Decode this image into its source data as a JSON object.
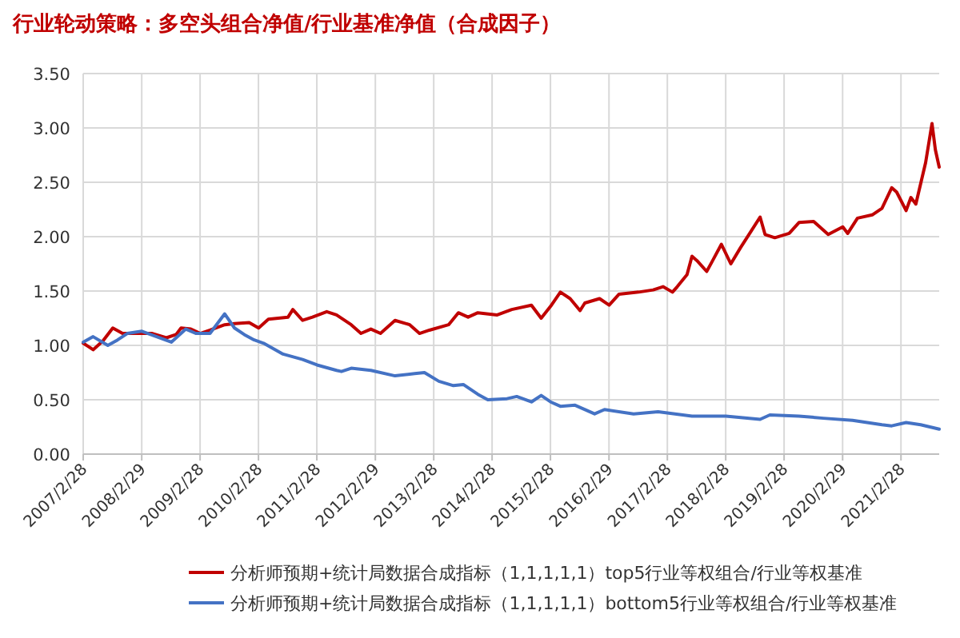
{
  "chart_data": {
    "type": "line",
    "title": "行业轮动策略：多空头组合净值/行业基准净值（合成因子）",
    "xlim": [
      "2007-02-28",
      "2021-10-25"
    ],
    "xticks": [
      {
        "value": "2007-02-28",
        "label": "2007/2/28"
      },
      {
        "value": "2008-02-29",
        "label": "2008/2/29"
      },
      {
        "value": "2009-02-28",
        "label": "2009/2/28"
      },
      {
        "value": "2010-02-28",
        "label": "2010/2/28"
      },
      {
        "value": "2011-02-28",
        "label": "2011/2/28"
      },
      {
        "value": "2012-02-29",
        "label": "2012/2/29"
      },
      {
        "value": "2013-02-28",
        "label": "2013/2/28"
      },
      {
        "value": "2014-02-28",
        "label": "2014/2/28"
      },
      {
        "value": "2015-02-28",
        "label": "2015/2/28"
      },
      {
        "value": "2016-02-29",
        "label": "2016/2/29"
      },
      {
        "value": "2017-02-28",
        "label": "2017/2/28"
      },
      {
        "value": "2018-02-28",
        "label": "2018/2/28"
      },
      {
        "value": "2019-02-28",
        "label": "2019/2/28"
      },
      {
        "value": "2020-02-29",
        "label": "2020/2/29"
      },
      {
        "value": "2021-02-28",
        "label": "2021/2/28"
      }
    ],
    "ylim": [
      0,
      3.5
    ],
    "yticks": [
      {
        "value": 0,
        "label": "0.00"
      },
      {
        "value": 0.5,
        "label": "0.50"
      },
      {
        "value": 1,
        "label": "1.00"
      },
      {
        "value": 1.5,
        "label": "1.50"
      },
      {
        "value": 2,
        "label": "2.00"
      },
      {
        "value": 2.5,
        "label": "2.50"
      },
      {
        "value": 3,
        "label": "3.00"
      },
      {
        "value": 3.5,
        "label": "3.50"
      }
    ],
    "grid": true,
    "legend": "bottom",
    "line_style": "solid",
    "series": [
      {
        "name": "分析师预期+统计局数据合成指标（1,1,1,1,1）top5行业等权组合/行业等权基准",
        "color": "#c00000",
        "x": [
          "2007-02-28",
          "2007-04",
          "2007-05",
          "2007-07",
          "2007-09",
          "2007-11",
          "2008-02",
          "2008-05",
          "2008-08",
          "2008-10",
          "2008-11",
          "2009-01",
          "2009-03",
          "2009-05",
          "2009-08",
          "2009-10",
          "2010-01",
          "2010-03",
          "2010-05",
          "2010-09",
          "2010-10",
          "2010-12",
          "2011-02",
          "2011-05",
          "2011-07",
          "2011-10",
          "2011-12",
          "2012-02",
          "2012-04",
          "2012-07",
          "2012-10",
          "2012-12",
          "2013-02",
          "2013-06",
          "2013-08",
          "2013-10",
          "2013-12",
          "2014-04",
          "2014-07",
          "2014-11",
          "2015-01",
          "2015-03",
          "2015-05",
          "2015-07",
          "2015-09",
          "2015-10",
          "2016-01",
          "2016-03",
          "2016-05",
          "2016-09",
          "2016-12",
          "2017-02",
          "2017-04",
          "2017-05",
          "2017-07",
          "2017-08",
          "2017-09",
          "2017-11",
          "2017-12",
          "2018-02",
          "2018-04",
          "2018-06",
          "2018-08",
          "2018-10",
          "2018-11",
          "2019-01",
          "2019-04",
          "2019-06",
          "2019-09",
          "2019-12",
          "2020-03",
          "2020-04",
          "2020-06",
          "2020-09",
          "2020-11",
          "2021-01",
          "2021-02",
          "2021-04",
          "2021-05",
          "2021-06",
          "2021-08",
          "2021-09-10",
          "2021-10-01",
          "2021-10-25"
        ],
        "values": [
          1.02,
          0.99,
          0.96,
          1.04,
          1.16,
          1.11,
          1.11,
          1.11,
          1.07,
          1.1,
          1.16,
          1.15,
          1.11,
          1.14,
          1.19,
          1.2,
          1.21,
          1.16,
          1.24,
          1.26,
          1.33,
          1.23,
          1.26,
          1.31,
          1.28,
          1.19,
          1.11,
          1.15,
          1.11,
          1.23,
          1.19,
          1.11,
          1.14,
          1.19,
          1.3,
          1.26,
          1.3,
          1.28,
          1.33,
          1.37,
          1.25,
          1.36,
          1.49,
          1.43,
          1.32,
          1.39,
          1.43,
          1.37,
          1.47,
          1.49,
          1.51,
          1.54,
          1.49,
          1.54,
          1.65,
          1.82,
          1.78,
          1.68,
          1.76,
          1.93,
          1.75,
          1.9,
          2.04,
          2.18,
          2.02,
          1.99,
          2.03,
          2.13,
          2.14,
          2.02,
          2.09,
          2.03,
          2.17,
          2.2,
          2.26,
          2.45,
          2.41,
          2.24,
          2.36,
          2.3,
          2.68,
          3.04,
          2.8,
          2.64
        ]
      },
      {
        "name": "分析师预期+统计局数据合成指标（1,1,1,1,1）bottom5行业等权组合/行业等权基准",
        "color": "#4472c4",
        "x": [
          "2007-02-28",
          "2007-05",
          "2007-08",
          "2007-10",
          "2007-12",
          "2008-03",
          "2008-06",
          "2008-09",
          "2008-12",
          "2009-02",
          "2009-05",
          "2009-08",
          "2009-10",
          "2009-12",
          "2010-02",
          "2010-04",
          "2010-08",
          "2010-12",
          "2011-03",
          "2011-07",
          "2011-08",
          "2011-10",
          "2012-02",
          "2012-07",
          "2012-11",
          "2013-01",
          "2013-04",
          "2013-07",
          "2013-09",
          "2013-12",
          "2014-02",
          "2014-06",
          "2014-08",
          "2014-11",
          "2015-01",
          "2015-03",
          "2015-05",
          "2015-08",
          "2015-12",
          "2016-02",
          "2016-08",
          "2017-01",
          "2017-08",
          "2018-03",
          "2018-10",
          "2018-12",
          "2019-06",
          "2019-11",
          "2020-05",
          "2020-11",
          "2021-01",
          "2021-04",
          "2021-07",
          "2021-10-25"
        ],
        "values": [
          1.03,
          1.08,
          1.0,
          1.05,
          1.11,
          1.13,
          1.08,
          1.03,
          1.15,
          1.11,
          1.11,
          1.29,
          1.16,
          1.1,
          1.05,
          1.02,
          0.92,
          0.87,
          0.82,
          0.77,
          0.76,
          0.79,
          0.77,
          0.72,
          0.74,
          0.75,
          0.67,
          0.63,
          0.64,
          0.55,
          0.5,
          0.51,
          0.53,
          0.48,
          0.54,
          0.48,
          0.44,
          0.45,
          0.37,
          0.41,
          0.37,
          0.39,
          0.35,
          0.35,
          0.32,
          0.36,
          0.35,
          0.33,
          0.31,
          0.27,
          0.26,
          0.29,
          0.27,
          0.23
        ]
      }
    ]
  }
}
